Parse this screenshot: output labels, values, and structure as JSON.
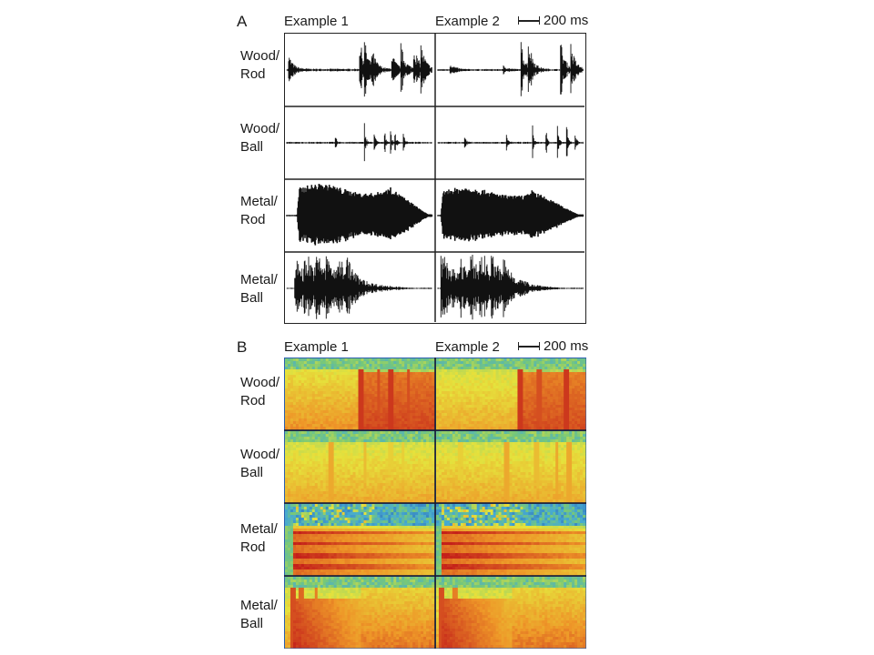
{
  "panels": [
    {
      "letter": "A",
      "type": "waveform",
      "columns": [
        "Example 1",
        "Example 2"
      ],
      "scale_bar": "200 ms",
      "rows": [
        {
          "line1": "Wood/",
          "line2": "Rod"
        },
        {
          "line1": "Wood/",
          "line2": "Ball"
        },
        {
          "line1": "Metal/",
          "line2": "Rod"
        },
        {
          "line1": "Metal/",
          "line2": "Ball"
        }
      ]
    },
    {
      "letter": "B",
      "type": "spectrogram",
      "columns": [
        "Example 1",
        "Example 2"
      ],
      "scale_bar": "200 ms",
      "rows": [
        {
          "line1": "Wood/",
          "line2": "Rod"
        },
        {
          "line1": "Wood/",
          "line2": "Ball"
        },
        {
          "line1": "Metal/",
          "line2": "Rod"
        },
        {
          "line1": "Metal/",
          "line2": "Ball"
        }
      ]
    }
  ],
  "colors": {
    "waveform": "#111111",
    "spec_low": "#2a5fb0",
    "spec_mid": "#e8e23a",
    "spec_high": "#c8231c"
  }
}
